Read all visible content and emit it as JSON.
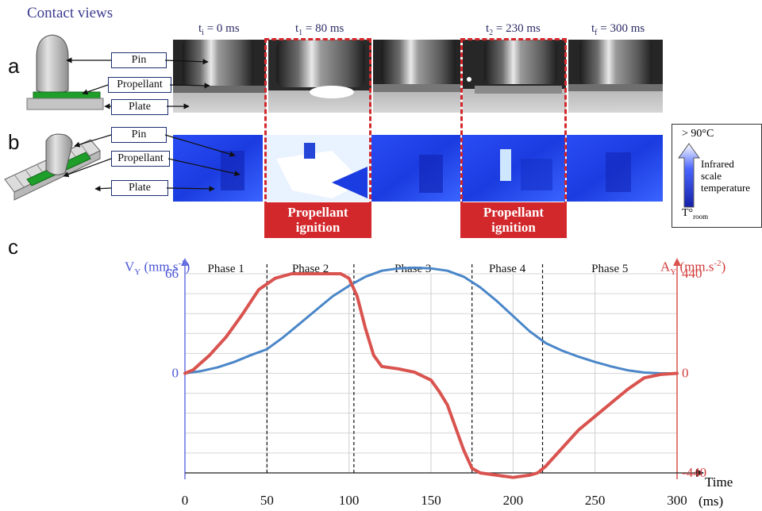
{
  "header": {
    "title": "Contact views"
  },
  "panels": {
    "a": "a",
    "b": "b",
    "c": "c"
  },
  "time_labels": [
    {
      "main": "t",
      "sub": "i",
      "rest": " = 0 ms"
    },
    {
      "main": "t",
      "sub": "1",
      "rest": " = 80 ms"
    },
    {
      "main": "t",
      "sub": "2",
      "rest": " = 230 ms"
    },
    {
      "main": "t",
      "sub": "f",
      "rest": " = 300 ms"
    }
  ],
  "callouts": {
    "pin": "Pin",
    "propellant": "Propellant",
    "plate": "Plate"
  },
  "ignition": {
    "line1": "Propellant",
    "line2": "ignition"
  },
  "legend": {
    "max_label": "> 90°C",
    "caption_1": "Infrared",
    "caption_2": "scale",
    "caption_3": "temperature",
    "min_main": "T°",
    "min_sub": "room"
  },
  "colors": {
    "accent_red": "#d2272b",
    "speed_blue": "#4a86c8",
    "accel_red": "#d9534f",
    "ir_blue": "#1a3df0"
  },
  "chart_data": {
    "type": "line",
    "xlabel": "Time",
    "xunit": "(ms)",
    "x_ticks": [
      0,
      50,
      100,
      150,
      200,
      250,
      300
    ],
    "xlim": [
      0,
      300
    ],
    "left_axis": {
      "label_main": "V",
      "label_sub": "Y",
      "label_unit": " (mm.s",
      "label_exp": "-1",
      "label_close": ")",
      "ticks": [
        0,
        66
      ],
      "ylim": [
        -66,
        66
      ]
    },
    "right_axis": {
      "label_main": "A",
      "label_sub": "Y",
      "label_unit": " (mm.s",
      "label_exp": "-2",
      "label_close": ")",
      "ticks": [
        440,
        0,
        -440
      ],
      "ylim": [
        -440,
        440
      ]
    },
    "phases": [
      "Phase 1",
      "Phase 2",
      "Phase 3",
      "Phase 4",
      "Phase 5"
    ],
    "phase_bounds": [
      0,
      50,
      103,
      175,
      218,
      300
    ],
    "series": [
      {
        "axis": "left",
        "x": [
          0,
          10,
          20,
          30,
          40,
          50,
          60,
          70,
          80,
          90,
          100,
          110,
          120,
          130,
          140,
          150,
          160,
          170,
          180,
          190,
          200,
          210,
          220,
          230,
          240,
          250,
          260,
          270,
          280,
          290,
          300
        ],
        "y": [
          0,
          1.5,
          4,
          7.5,
          12,
          16,
          24,
          33,
          42,
          51,
          58,
          64,
          68,
          69.5,
          70,
          69.5,
          68,
          64,
          57,
          48,
          38,
          28,
          20,
          15,
          11,
          7.5,
          4.5,
          2,
          0.5,
          0,
          0
        ]
      },
      {
        "axis": "right",
        "x": [
          0,
          5,
          15,
          25,
          35,
          45,
          55,
          65,
          80,
          95,
          100,
          105,
          110,
          115,
          120,
          130,
          140,
          150,
          155,
          160,
          165,
          170,
          175,
          180,
          190,
          200,
          210,
          215,
          220,
          230,
          240,
          250,
          260,
          270,
          280,
          290,
          300
        ],
        "y": [
          0,
          15,
          80,
          160,
          260,
          370,
          420,
          440,
          440,
          440,
          420,
          340,
          200,
          80,
          30,
          20,
          5,
          -30,
          -80,
          -140,
          -240,
          -340,
          -420,
          -440,
          -450,
          -460,
          -450,
          -440,
          -410,
          -330,
          -250,
          -190,
          -130,
          -70,
          -20,
          -5,
          0
        ]
      }
    ]
  }
}
